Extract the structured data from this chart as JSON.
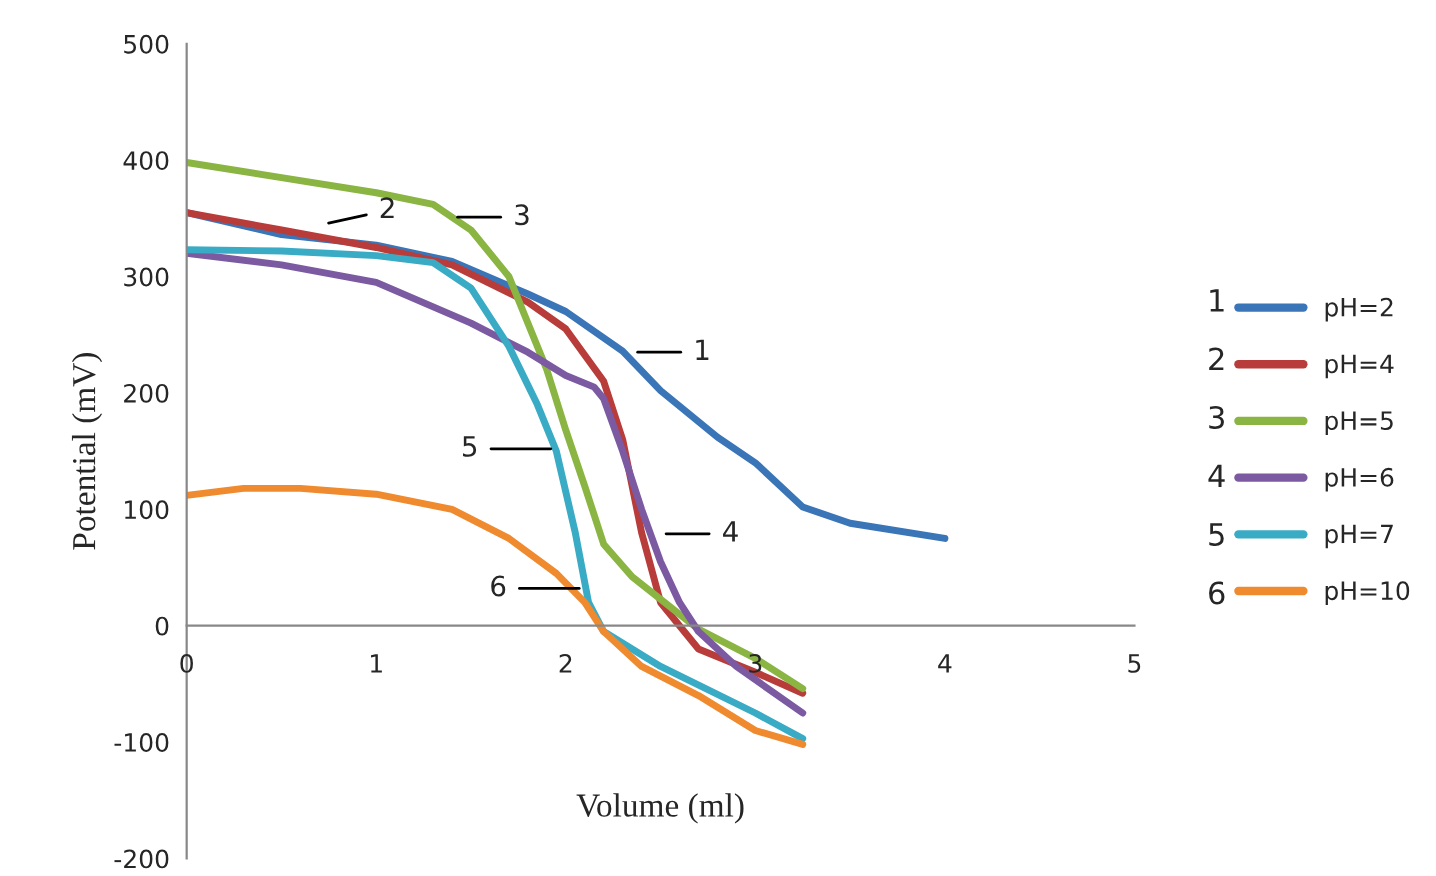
{
  "chart_data": {
    "type": "line",
    "xlabel": "Volume (ml)",
    "ylabel": "Potential (mV)",
    "xlim": [
      0,
      5
    ],
    "xticks": [
      0,
      1,
      2,
      3,
      4,
      5
    ],
    "ylim": [
      -200,
      500
    ],
    "yticks": [
      -200,
      -100,
      0,
      100,
      200,
      300,
      400,
      500
    ],
    "grid": false,
    "legend": "right",
    "marker": "none",
    "line_style": "solid",
    "series": [
      {
        "name": "pH=2",
        "color": "#3a75b8",
        "x": [
          0,
          0.5,
          1,
          1.4,
          1.8,
          2,
          2.3,
          2.5,
          2.8,
          3,
          3.25,
          3.5,
          4
        ],
        "values": [
          355,
          336,
          327,
          313,
          285,
          270,
          236,
          202,
          162,
          140,
          102,
          88,
          75
        ]
      },
      {
        "name": "pH=4",
        "color": "#b83c3a",
        "x": [
          0,
          0.5,
          1,
          1.4,
          1.8,
          2,
          2.2,
          2.3,
          2.4,
          2.5,
          2.7,
          3,
          3.25
        ],
        "values": [
          355,
          340,
          325,
          310,
          278,
          255,
          210,
          160,
          80,
          20,
          -20,
          -40,
          -58
        ]
      },
      {
        "name": "pH=5",
        "color": "#8ab542",
        "x": [
          0,
          0.5,
          1,
          1.3,
          1.5,
          1.7,
          1.9,
          2,
          2.1,
          2.2,
          2.35,
          2.7,
          3,
          3.25
        ],
        "values": [
          398,
          385,
          372,
          362,
          340,
          300,
          220,
          168,
          120,
          70,
          42,
          -3,
          -28,
          -54
        ]
      },
      {
        "name": "pH=6",
        "color": "#7b5aa2",
        "x": [
          0,
          0.5,
          1,
          1.5,
          1.8,
          2,
          2.15,
          2.2,
          2.3,
          2.4,
          2.5,
          2.6,
          2.7,
          2.9,
          3.25
        ],
        "values": [
          320,
          310,
          295,
          260,
          235,
          215,
          205,
          195,
          150,
          100,
          55,
          20,
          -5,
          -35,
          -75
        ]
      },
      {
        "name": "pH=7",
        "color": "#3aabc5",
        "x": [
          0,
          0.5,
          1,
          1.3,
          1.5,
          1.7,
          1.85,
          1.95,
          2.05,
          2.12,
          2.2,
          2.5,
          3,
          3.25
        ],
        "values": [
          323,
          322,
          318,
          312,
          290,
          240,
          190,
          150,
          80,
          20,
          -5,
          -35,
          -75,
          -97
        ]
      },
      {
        "name": "pH=10",
        "color": "#ef8a2f",
        "x": [
          0,
          0.3,
          0.6,
          1,
          1.4,
          1.7,
          1.95,
          2.1,
          2.2,
          2.4,
          2.7,
          3,
          3.25
        ],
        "values": [
          112,
          118,
          118,
          113,
          100,
          75,
          45,
          20,
          -5,
          -35,
          -60,
          -90,
          -102
        ]
      }
    ],
    "annotations": [
      {
        "text": "1",
        "x": 2.35,
        "y": 235
      },
      {
        "text": "2",
        "x": 0.72,
        "y": 345
      },
      {
        "text": "3",
        "x": 1.4,
        "y": 351
      },
      {
        "text": "4",
        "x": 2.5,
        "y": 79
      },
      {
        "text": "5",
        "x": 1.95,
        "y": 152
      },
      {
        "text": "6",
        "x": 2.1,
        "y": 32
      }
    ]
  }
}
